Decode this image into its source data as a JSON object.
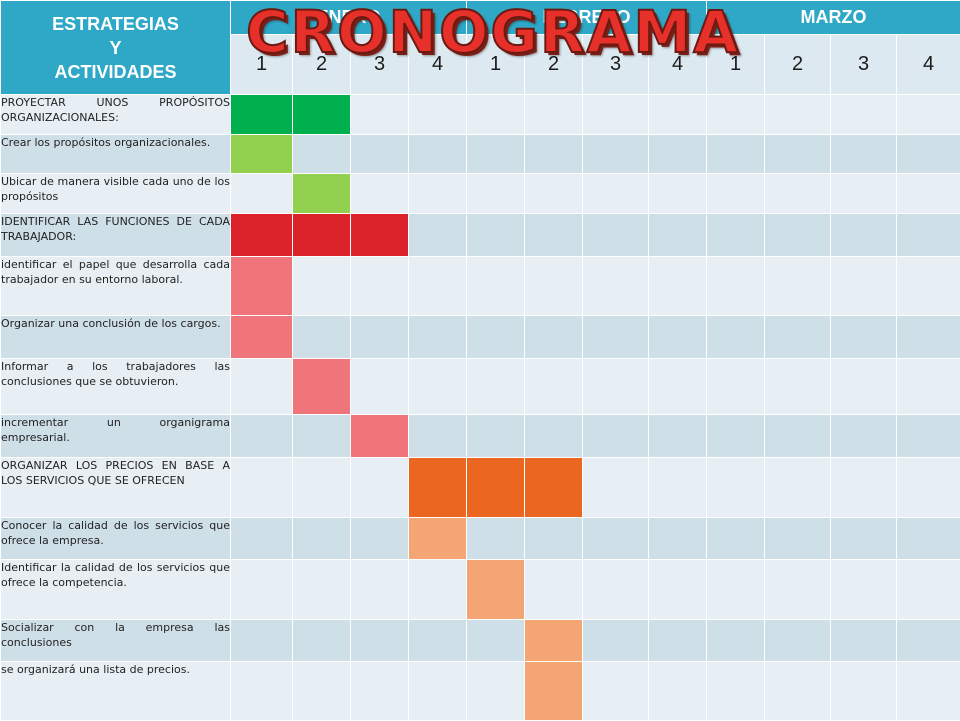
{
  "header": {
    "corner_label": "ESTRATEGIAS\nY\nACTIVIDADES",
    "months": [
      "ENERO",
      "FEBRERO",
      "MARZO"
    ],
    "weeks": [
      "1",
      "2",
      "3",
      "4",
      "1",
      "2",
      "3",
      "4",
      "1",
      "2",
      "3",
      "4"
    ]
  },
  "title": "CRONOGRAMA",
  "colors": {
    "header": "#2fa8c7",
    "green-dark": "#00b04e",
    "green-light": "#92d04f",
    "red": "#dc232c",
    "pink": "#f0757b",
    "orange": "#eb6620",
    "peach": "#f4a574"
  },
  "rows": [
    {
      "activity": "PROYECTAR UNOS PROPÓSITOS ORGANIZACIONALES:",
      "weeks": [
        1,
        2
      ],
      "color": "green-dark"
    },
    {
      "activity": "Crear los propósitos organizacionales.",
      "weeks": [
        1
      ],
      "color": "green-light"
    },
    {
      "activity": "Ubicar de manera visible cada uno de los propósitos",
      "weeks": [
        2
      ],
      "color": "green-light"
    },
    {
      "activity": "IDENTIFICAR LAS FUNCIONES DE CADA TRABAJADOR:",
      "weeks": [
        1,
        2,
        3
      ],
      "color": "red"
    },
    {
      "activity": "identificar el papel que desarrolla cada trabajador en su entorno laboral.",
      "weeks": [
        1
      ],
      "color": "pink"
    },
    {
      "activity": "Organizar una conclusión de los cargos.",
      "weeks": [
        1
      ],
      "color": "pink"
    },
    {
      "activity": "Informar a los trabajadores las conclusiones que se obtuvieron.",
      "weeks": [
        2
      ],
      "color": "pink"
    },
    {
      "activity": "incrementar un organigrama empresarial.",
      "weeks": [
        3
      ],
      "color": "pink"
    },
    {
      "activity": "ORGANIZAR LOS PRECIOS EN BASE A LOS SERVICIOS QUE SE OFRECEN",
      "weeks": [
        4,
        5,
        6
      ],
      "color": "orange"
    },
    {
      "activity": "Conocer la calidad de los servicios que ofrece la empresa.",
      "weeks": [
        4
      ],
      "color": "peach"
    },
    {
      "activity": "Identificar la calidad de los servicios que ofrece la competencia.",
      "weeks": [
        5
      ],
      "color": "peach"
    },
    {
      "activity": "Socializar con la empresa las conclusiones",
      "weeks": [
        6
      ],
      "color": "peach"
    },
    {
      "activity": "se organizará una lista de precios.",
      "weeks": [
        6
      ],
      "color": "peach"
    }
  ]
}
